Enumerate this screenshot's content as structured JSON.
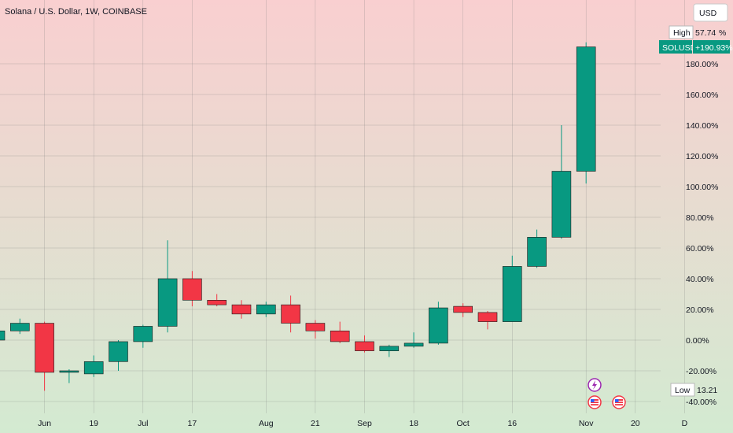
{
  "header": {
    "title": "Solana / U.S. Dollar, 1W, COINBASE",
    "currency": "USD"
  },
  "colors": {
    "up": "#089981",
    "down": "#f23645",
    "bg_top": "#f9cfd0",
    "bg_bottom": "#d3ead1",
    "grid": "#7a7a7a",
    "tag_bg": "#089981"
  },
  "markers": {
    "high_label": "High",
    "high_value": "57.74",
    "high_suffix": "%",
    "low_label": "Low",
    "low_value": "13.21",
    "current_symbol": "SOLUSD",
    "current_change": "+190.93%"
  },
  "event_icons": [
    "lightning-icon",
    "us-flag-icon",
    "us-flag-icon"
  ],
  "chart_data": {
    "type": "candlestick",
    "title": "Solana / U.S. Dollar, 1W, COINBASE",
    "y_unit": "percent change",
    "ylim": [
      -43,
      197
    ],
    "y_ticks": [
      -40,
      -20,
      0,
      20,
      40,
      60,
      80,
      100,
      120,
      140,
      160,
      180
    ],
    "y_tick_labels": [
      "-40.00%",
      "-20.00%",
      "0.00%",
      "20.00%",
      "40.00%",
      "60.00%",
      "80.00%",
      "100.00%",
      "120.00%",
      "140.00%",
      "160.00%",
      "180.00%"
    ],
    "x_tick_labels": [
      {
        "label": "Jun",
        "index": 2
      },
      {
        "label": "19",
        "index": 4
      },
      {
        "label": "Jul",
        "index": 6
      },
      {
        "label": "17",
        "index": 8
      },
      {
        "label": "Aug",
        "index": 11
      },
      {
        "label": "21",
        "index": 13
      },
      {
        "label": "Sep",
        "index": 15
      },
      {
        "label": "18",
        "index": 17
      },
      {
        "label": "Oct",
        "index": 19
      },
      {
        "label": "16",
        "index": 21
      },
      {
        "label": "Nov",
        "index": 24
      },
      {
        "label": "20",
        "index": 26
      },
      {
        "label": "D",
        "index": 28
      }
    ],
    "candles": [
      {
        "open": 0,
        "high": 6,
        "low": -2,
        "close": 6
      },
      {
        "open": 6,
        "high": 14,
        "low": 4,
        "close": 11
      },
      {
        "open": 11,
        "high": 12,
        "low": -33,
        "close": -21
      },
      {
        "open": -21,
        "high": -19,
        "low": -28,
        "close": -20
      },
      {
        "open": -22,
        "high": -10,
        "low": -24,
        "close": -14
      },
      {
        "open": -14,
        "high": 0,
        "low": -20,
        "close": -1
      },
      {
        "open": -1,
        "high": 10,
        "low": -5,
        "close": 9
      },
      {
        "open": 9,
        "high": 65,
        "low": 5,
        "close": 40
      },
      {
        "open": 40,
        "high": 45,
        "low": 22,
        "close": 26
      },
      {
        "open": 26,
        "high": 30,
        "low": 22,
        "close": 23
      },
      {
        "open": 23,
        "high": 26,
        "low": 14,
        "close": 17
      },
      {
        "open": 17,
        "high": 25,
        "low": 15,
        "close": 23
      },
      {
        "open": 23,
        "high": 29,
        "low": 5,
        "close": 11
      },
      {
        "open": 11,
        "high": 13,
        "low": 1,
        "close": 6
      },
      {
        "open": 6,
        "high": 12,
        "low": -2,
        "close": -1
      },
      {
        "open": -1,
        "high": 3,
        "low": -8,
        "close": -7
      },
      {
        "open": -7,
        "high": -3,
        "low": -11,
        "close": -4
      },
      {
        "open": -4,
        "high": 5,
        "low": -5,
        "close": -2
      },
      {
        "open": -2,
        "high": 25,
        "low": -3,
        "close": 21
      },
      {
        "open": 22,
        "high": 24,
        "low": 15,
        "close": 18
      },
      {
        "open": 18,
        "high": 19,
        "low": 7,
        "close": 12
      },
      {
        "open": 12,
        "high": 55,
        "low": 12,
        "close": 48
      },
      {
        "open": 48,
        "high": 72,
        "low": 47,
        "close": 67
      },
      {
        "open": 67,
        "high": 140,
        "low": 66,
        "close": 110
      },
      {
        "open": 110,
        "high": 194,
        "low": 102,
        "close": 191
      }
    ]
  }
}
